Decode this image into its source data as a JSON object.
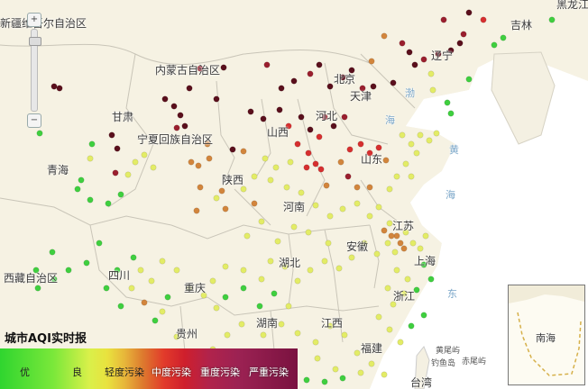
{
  "map": {
    "labels": [
      {
        "key": "xinjiang",
        "text": "新疆维吾尔自治区"
      },
      {
        "key": "heilongjiang",
        "text": "黑龙江"
      },
      {
        "key": "jilin",
        "text": "吉林"
      },
      {
        "key": "liaoning",
        "text": "辽宁"
      },
      {
        "key": "neimenggu",
        "text": "内蒙古自治区"
      },
      {
        "key": "beijing",
        "text": "北京"
      },
      {
        "key": "tianjin",
        "text": "天津"
      },
      {
        "key": "gansu",
        "text": "甘肃"
      },
      {
        "key": "hebei",
        "text": "河北"
      },
      {
        "key": "ningxia",
        "text": "宁夏回族自治区"
      },
      {
        "key": "shanxi",
        "text": "山西"
      },
      {
        "key": "shandong",
        "text": "山东"
      },
      {
        "key": "qinghai",
        "text": "青海"
      },
      {
        "key": "shaanxi",
        "text": "陕西"
      },
      {
        "key": "henan",
        "text": "河南"
      },
      {
        "key": "jiangsu",
        "text": "江苏"
      },
      {
        "key": "anhui",
        "text": "安徽"
      },
      {
        "key": "shanghai",
        "text": "上海"
      },
      {
        "key": "xizang",
        "text": "西藏自治区"
      },
      {
        "key": "sichuan",
        "text": "四川"
      },
      {
        "key": "hubei",
        "text": "湖北"
      },
      {
        "key": "chongqing",
        "text": "重庆"
      },
      {
        "key": "zhejiang",
        "text": "浙江"
      },
      {
        "key": "hunan",
        "text": "湖南"
      },
      {
        "key": "jiangxi",
        "text": "江西"
      },
      {
        "key": "guizhou",
        "text": "贵州"
      },
      {
        "key": "fujian",
        "text": "福建"
      },
      {
        "key": "taiwan",
        "text": "台湾"
      },
      {
        "key": "huangyan",
        "text": "黄尾屿"
      },
      {
        "key": "chiwei",
        "text": "赤尾屿"
      },
      {
        "key": "diaoyu",
        "text": "钓鱼岛"
      },
      {
        "key": "nanhai",
        "text": "南海"
      }
    ],
    "sea_labels": [
      {
        "key": "bohai",
        "text": "渤"
      },
      {
        "key": "hai1",
        "text": "海"
      },
      {
        "key": "huang",
        "text": "黄"
      },
      {
        "key": "hai2",
        "text": "海"
      },
      {
        "key": "dong",
        "text": "东"
      }
    ],
    "zoom": {
      "plus": "+",
      "minus": "−"
    }
  },
  "legend": {
    "title": "城市AQI实时报",
    "levels": [
      {
        "label": "优",
        "color": "#2fd52f"
      },
      {
        "label": "良",
        "color": "#d9f04a"
      },
      {
        "label": "轻度污染",
        "color": "#e7b53a"
      },
      {
        "label": "中度污染",
        "color": "#e23b2b"
      },
      {
        "label": "重度污染",
        "color": "#b1234b"
      },
      {
        "label": "严重污染",
        "color": "#7a1240"
      }
    ]
  },
  "colors": {
    "land": "#f5f1e4",
    "sea": "#ffffff",
    "border": "#bdbdbd",
    "excellent": "#3fcf3f",
    "good": "#e3ec66",
    "light": "#d2853c",
    "moderate": "#d62f2f",
    "heavy": "#9a1f2e",
    "severe": "#5a0f1c"
  }
}
